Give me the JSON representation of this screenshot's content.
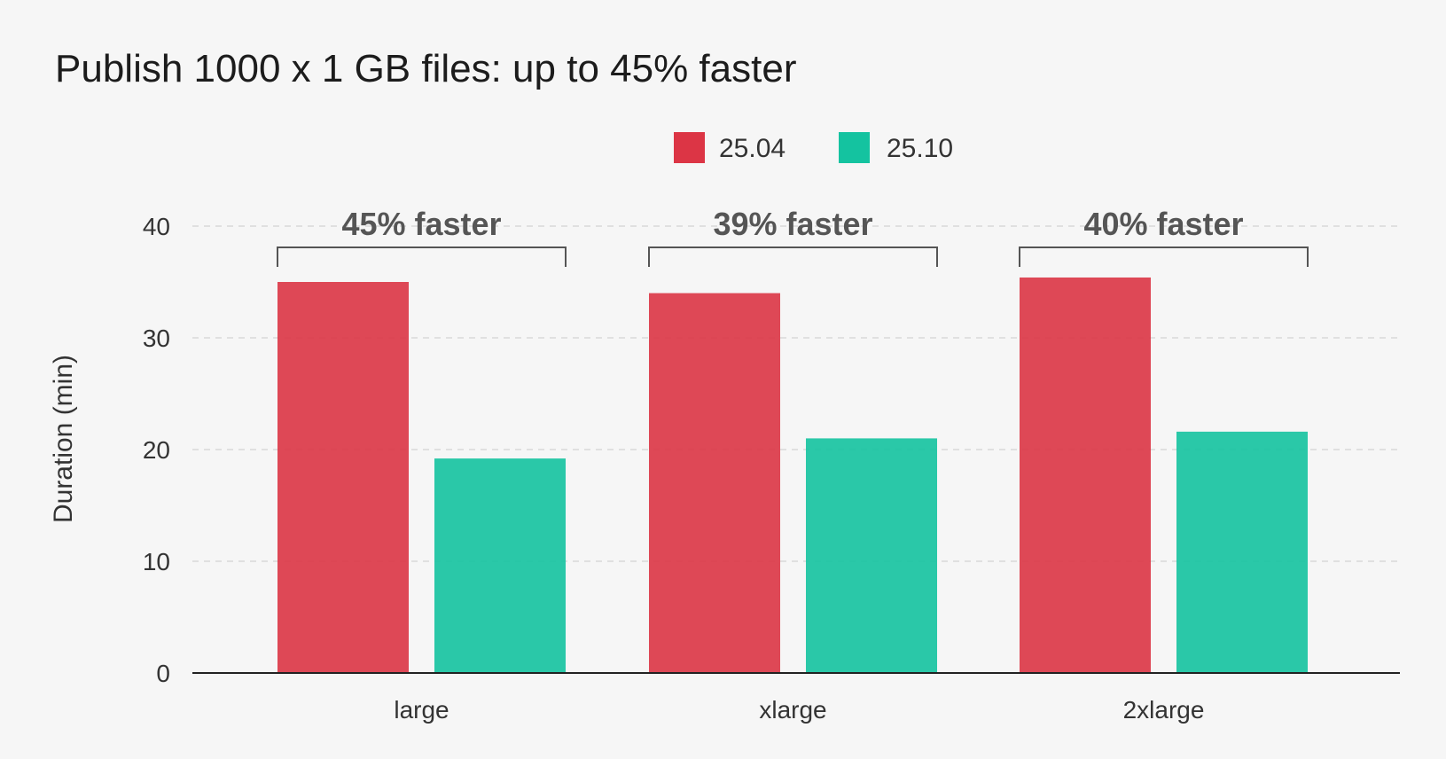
{
  "chart_data": {
    "type": "bar",
    "title": "Publish 1000 x 1 GB files: up to 45% faster",
    "xlabel": "",
    "ylabel": "Duration (min)",
    "ylim": [
      0,
      40
    ],
    "yticks": [
      0,
      10,
      20,
      30,
      40
    ],
    "grid": true,
    "legend_position": "top-center",
    "categories": [
      "large",
      "xlarge",
      "2xlarge"
    ],
    "series": [
      {
        "name": "25.04",
        "color": "#dc3545",
        "values": [
          35.0,
          34.0,
          35.4
        ]
      },
      {
        "name": "25.10",
        "color": "#14c3a0",
        "values": [
          19.2,
          21.0,
          21.6
        ]
      }
    ],
    "annotations": [
      "45% faster",
      "39% faster",
      "40% faster"
    ]
  }
}
